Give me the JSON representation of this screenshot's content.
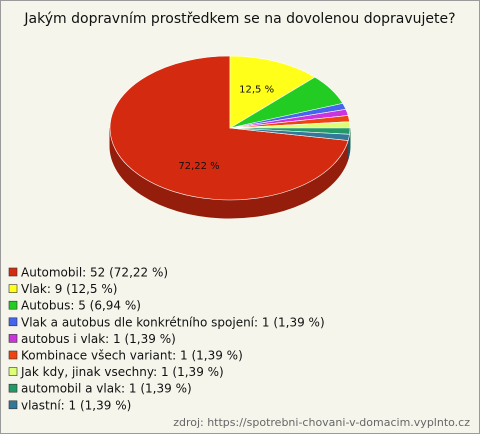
{
  "chart_data": {
    "type": "pie3d",
    "title": "Jakým dopravním prostředkem se na dovolenou dopravujete?",
    "categories": [
      "Automobil: 52 (72,22 %)",
      "Vlak: 9 (12,5 %)",
      "Autobus: 5 (6,94 %)",
      "Vlak a autobus dle konkrétního spojení: 1 (1,39 %)",
      "autobus i vlak: 1 (1,39 %)",
      "Kombinace všech variant: 1 (1,39 %)",
      "Jak kdy, jinak vsechny: 1 (1,39 %)",
      "automobil a vlak: 1 (1,39 %)",
      "vlastní: 1 (1,39 %)"
    ],
    "values": [
      72.22,
      12.5,
      6.94,
      1.39,
      1.39,
      1.39,
      1.39,
      1.39,
      1.39
    ],
    "value_labels": [
      "72,22 %",
      "12,5 %",
      null,
      null,
      null,
      null,
      null,
      null,
      null
    ],
    "colors": [
      "#d42a10",
      "#ffff1a",
      "#22cc22",
      "#4466ee",
      "#cc33dd",
      "#ee4411",
      "#ddff77",
      "#229966",
      "#337799"
    ],
    "source": "zdroj: https://spotrebni-chovani-v-domacim.vyplnto.cz"
  }
}
